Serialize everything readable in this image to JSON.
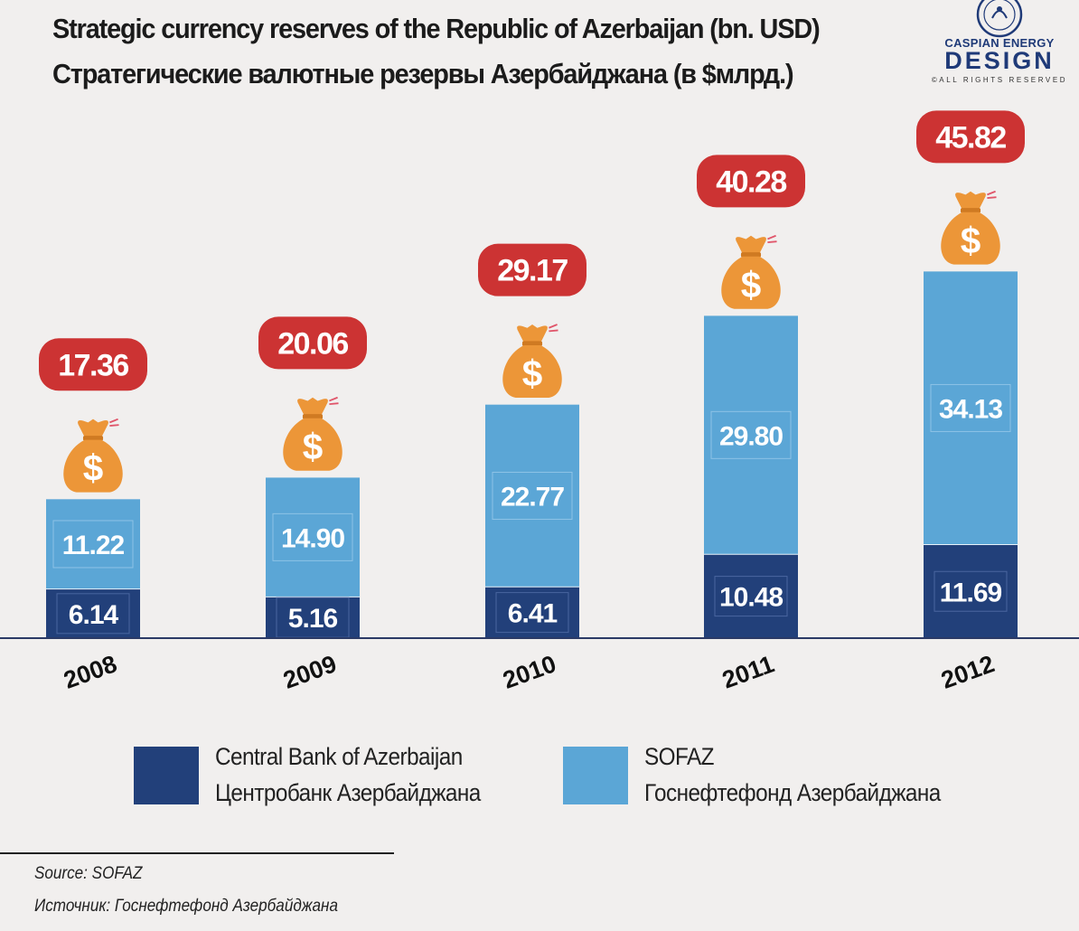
{
  "title_en": "Strategic currency reserves of the Republic of Azerbaijan (bn. USD)",
  "title_ru": "Стратегические валютные резервы Азербайджана (в $млрд.)",
  "logo": {
    "brand_line1": "CASPIAN ENERGY",
    "brand_line2": "DESIGN",
    "brand_line3": "©ALL RIGHTS RESERVED"
  },
  "chart_data": {
    "type": "bar",
    "stacked": true,
    "categories": [
      "2008",
      "2009",
      "2010",
      "2011",
      "2012"
    ],
    "series": [
      {
        "name": "Central Bank of Azerbaijan",
        "values": [
          6.14,
          5.16,
          6.41,
          10.48,
          11.69
        ]
      },
      {
        "name": "SOFAZ",
        "values": [
          11.22,
          14.9,
          22.77,
          29.8,
          34.13
        ]
      }
    ],
    "totals": [
      17.36,
      20.06,
      29.17,
      40.28,
      45.82
    ],
    "value_labels": {
      "cb": [
        "6.14",
        "5.16",
        "6.41",
        "10.48",
        "11.69"
      ],
      "sofaz": [
        "11.22",
        "14.90",
        "22.77",
        "29.80",
        "34.13"
      ],
      "totals": [
        "17.36",
        "20.06",
        "29.17",
        "40.28",
        "45.82"
      ]
    },
    "ylim": [
      0,
      50
    ],
    "grid": false,
    "colors": {
      "cb": "#22407a",
      "sofaz": "#5ba6d6",
      "total_badge": "#cc3333",
      "money_bag": "#ec9638"
    }
  },
  "legend": {
    "cb_en": "Central Bank of Azerbaijan",
    "cb_ru": "Центробанк Азербайджана",
    "sofaz_en": "SOFAZ",
    "sofaz_ru": "Госнефтефонд Азербайджана"
  },
  "source": {
    "en": "Source: SOFAZ",
    "ru": "Источник: Госнефтефонд Азербайджана"
  }
}
